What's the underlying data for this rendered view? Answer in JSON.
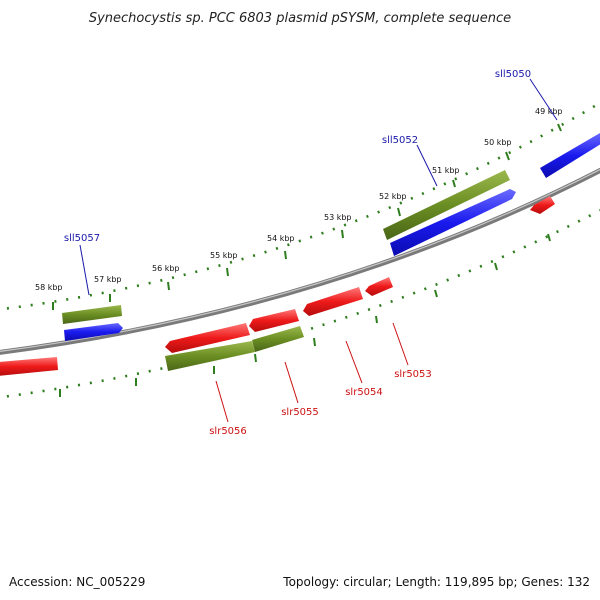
{
  "title": "Synechocystis sp. PCC 6803 plasmid pSYSM, complete sequence",
  "footer": {
    "accession": "Accession: NC_005229",
    "summary": "Topology: circular; Length: 119,895 bp; Genes: 132"
  },
  "colors": {
    "plus_strand": "#1a1aee",
    "minus_strand": "#ee1a1a",
    "cds_feature": "#6b8e23",
    "tick": "#2e7d1e",
    "backbone": "#888888",
    "label_plus": "#1a1aaa",
    "label_minus": "#cc1111"
  },
  "scale_labels": [
    "49 kbp",
    "50 kbp",
    "51 kbp",
    "52 kbp",
    "53 kbp",
    "54 kbp",
    "55 kbp",
    "56 kbp",
    "57 kbp",
    "58 kbp"
  ],
  "genes": [
    {
      "name": "sll5050",
      "strand": "plus"
    },
    {
      "name": "sll5052",
      "strand": "plus"
    },
    {
      "name": "sll5057",
      "strand": "plus"
    },
    {
      "name": "slr5053",
      "strand": "minus"
    },
    {
      "name": "slr5054",
      "strand": "minus"
    },
    {
      "name": "slr5055",
      "strand": "minus"
    },
    {
      "name": "slr5056",
      "strand": "minus"
    }
  ]
}
